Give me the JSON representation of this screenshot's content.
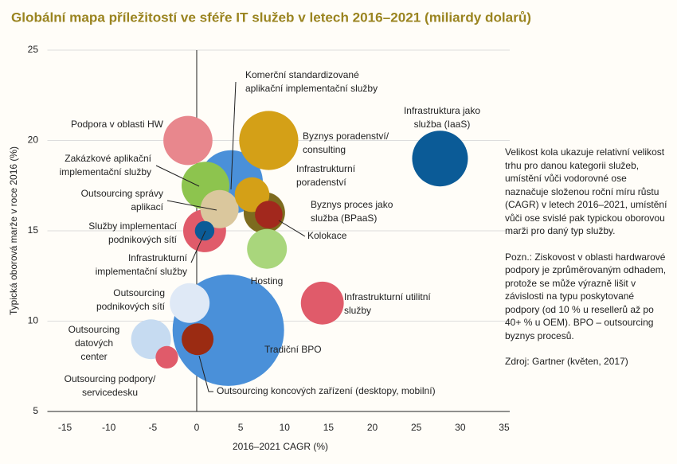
{
  "chart_data": {
    "type": "bubble",
    "title": "Globální mapa příležitostí ve sféře IT služeb v letech 2016–2021 (miliardy dolarů)",
    "xlabel": "2016–2021 CAGR (%)",
    "ylabel": "Typická oborová marže v roce 2016 (%)",
    "xlim": [
      -17,
      36
    ],
    "ylim": [
      5,
      25
    ],
    "xticks": [
      -15,
      -10,
      -5,
      0,
      5,
      10,
      15,
      20,
      25,
      30,
      35
    ],
    "yticks": [
      5,
      10,
      15,
      20,
      25
    ],
    "grid": true,
    "points": [
      {
        "label": [
          "Tradiční BPO"
        ],
        "x": 3.6,
        "y": 9.5,
        "size": 196,
        "color": "#4a90d9"
      },
      {
        "label": [
          "Komerční standardizované",
          "aplikační implementační služby"
        ],
        "x": 3.9,
        "y": 17.7,
        "size": 64,
        "color": "#4a90d9"
      },
      {
        "label": [
          "Byznys poradenství/",
          "consulting"
        ],
        "x": 8.2,
        "y": 20,
        "size": 55,
        "color": "#d4a017"
      },
      {
        "label": [
          "Infrastruktura jako",
          "služba (IaaS)"
        ],
        "x": 27.7,
        "y": 19,
        "size": 49,
        "color": "#0b5b97"
      },
      {
        "label": [
          "Podpora v oblasti HW"
        ],
        "x": -1,
        "y": 20,
        "size": 38,
        "color": "#e8878d"
      },
      {
        "label": [
          "Zakázkové aplikační",
          "implementační služby"
        ],
        "x": 1,
        "y": 17.5,
        "size": 36,
        "color": "#8dc44e"
      },
      {
        "label": [
          "Byznys proces jako",
          "služba (BPaaS)"
        ],
        "x": 7.7,
        "y": 16,
        "size": 27,
        "color": "#7d6b1f"
      },
      {
        "label": [
          "Hosting"
        ],
        "x": 8,
        "y": 14,
        "size": 25,
        "color": "#a9d67c"
      },
      {
        "label": [
          "Infrastrukturní utilitní",
          "služby"
        ],
        "x": 14.3,
        "y": 11,
        "size": 29,
        "color": "#e05b6a"
      },
      {
        "label": [
          "Služby implementací",
          "podnikových sítí"
        ],
        "x": 0.9,
        "y": 15,
        "size": 29,
        "color": "#e05b6a"
      },
      {
        "label": [
          "Outsourcing správy",
          "aplikací"
        ],
        "x": 2.6,
        "y": 16.2,
        "size": 23,
        "color": "#dac79d"
      },
      {
        "label": [
          "Outsourcing",
          "podnikových sítí"
        ],
        "x": -0.8,
        "y": 11,
        "size": 25,
        "color": "#dfe9f6"
      },
      {
        "label": [
          "Outsourcing",
          "datových",
          "center"
        ],
        "x": -5.2,
        "y": 9,
        "size": 25,
        "color": "#c6dbf1"
      },
      {
        "label": [
          "Infrastrukturní",
          "poradenství"
        ],
        "x": 6.3,
        "y": 17,
        "size": 19,
        "color": "#d4a017"
      },
      {
        "label": [
          "Kolokace"
        ],
        "x": 8.2,
        "y": 15.9,
        "size": 12,
        "color": "#a2281d"
      },
      {
        "label": [
          "Outsourcing koncových zařízení (desktopy, mobilní)"
        ],
        "x": 0.1,
        "y": 9,
        "size": 16,
        "color": "#9b2b12"
      },
      {
        "label": [
          "Outsourcing podpory/",
          "servicedesku"
        ],
        "x": -3.4,
        "y": 8,
        "size": 8,
        "color": "#e05b6a"
      },
      {
        "label": [
          "Infrastrukturní",
          "implementační služby"
        ],
        "x": 0.9,
        "y": 15,
        "size": 6,
        "color": "#0b5b97"
      }
    ],
    "notes": [
      "Velikost kola ukazuje relativní velikost trhu pro danou kategorii služeb, umístění vůči vodorovné ose naznačuje složenou roční míru růstu (CAGR) v letech 2016–2021, umístění vůči ose svislé pak typickou oborovou marži pro daný typ služby.",
      "Pozn.: Ziskovost v oblasti hardwarové podpory je zprůměrovaným odhadem, protože se může výrazně lišit v závislosti na typu poskytované podpory (od 10 % u resellerů až po 40+ % u OEM). BPO – outsourcing byznys procesů.",
      "Zdroj: Gartner (květen, 2017)"
    ]
  }
}
